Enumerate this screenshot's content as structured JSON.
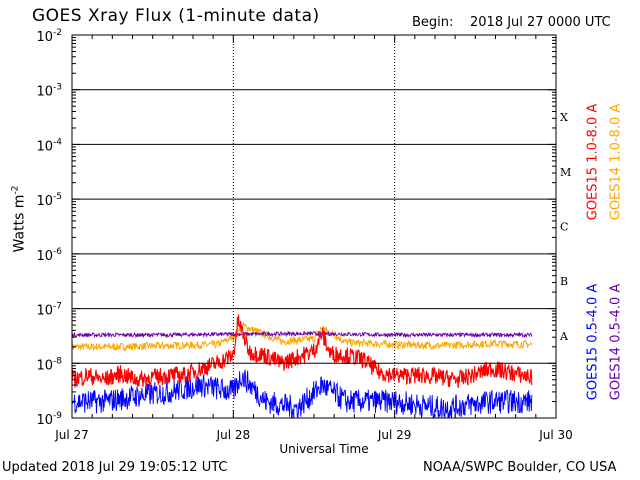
{
  "header": {
    "title": "GOES Xray Flux (1-minute data)",
    "begin_label": "Begin:",
    "begin_value": "2018 Jul 27 0000 UTC"
  },
  "footer": {
    "updated": "Updated 2018 Jul 29 19:05:12 UTC",
    "credit": "NOAA/SWPC Boulder, CO USA"
  },
  "chart_data": {
    "type": "line",
    "ylabel": "Watts m",
    "ylabel_superscript": "-2",
    "xlabel": "Universal Time",
    "yscale": "log",
    "ylim": [
      1e-09,
      0.01
    ],
    "y_ticks": [
      {
        "value": 1e-09,
        "base": "10",
        "exp": "-9"
      },
      {
        "value": 1e-08,
        "base": "10",
        "exp": "-8"
      },
      {
        "value": 1e-07,
        "base": "10",
        "exp": "-7"
      },
      {
        "value": 1e-06,
        "base": "10",
        "exp": "-6"
      },
      {
        "value": 1e-05,
        "base": "10",
        "exp": "-5"
      },
      {
        "value": 0.0001,
        "base": "10",
        "exp": "-4"
      },
      {
        "value": 0.001,
        "base": "10",
        "exp": "-3"
      },
      {
        "value": 0.01,
        "base": "10",
        "exp": "-2"
      }
    ],
    "x_ticks": [
      "Jul 27",
      "Jul 28",
      "Jul 29",
      "Jul 30"
    ],
    "xlim_days": [
      0,
      3
    ],
    "grid": true,
    "flare_classes": [
      {
        "label": "A",
        "value": 1e-08
      },
      {
        "label": "B",
        "value": 1e-07
      },
      {
        "label": "C",
        "value": 1e-06
      },
      {
        "label": "M",
        "value": 1e-05
      },
      {
        "label": "X",
        "value": 0.0001
      }
    ],
    "series": [
      {
        "name": "GOES15 1.0-8.0 A",
        "color": "#ff0000",
        "x": [
          0,
          0.1,
          0.2,
          0.3,
          0.4,
          0.5,
          0.6,
          0.7,
          0.8,
          0.9,
          1.0,
          1.03,
          1.1,
          1.2,
          1.3,
          1.4,
          1.5,
          1.55,
          1.6,
          1.7,
          1.8,
          1.9,
          2.0,
          2.2,
          2.4,
          2.6,
          2.8,
          2.85
        ],
        "y": [
          5e-09,
          6e-09,
          5e-09,
          6.5e-09,
          5e-09,
          5.5e-09,
          6e-09,
          6e-09,
          8e-09,
          1e-08,
          1.4e-08,
          6e-08,
          1.6e-08,
          1.4e-08,
          1e-08,
          1.3e-08,
          1.7e-08,
          3.5e-08,
          1.5e-08,
          1.4e-08,
          1.2e-08,
          7e-09,
          6e-09,
          6e-09,
          5e-09,
          8e-09,
          6e-09,
          5.5e-09
        ]
      },
      {
        "name": "GOES14 1.0-8.0 A",
        "color": "#ffa500",
        "x": [
          0,
          0.3,
          0.6,
          0.9,
          1.0,
          1.05,
          1.3,
          1.5,
          1.55,
          1.7,
          2.0,
          2.3,
          2.6,
          2.85
        ],
        "y": [
          2e-08,
          2e-08,
          2.1e-08,
          2.2e-08,
          3e-08,
          5e-08,
          2.5e-08,
          2.8e-08,
          4.5e-08,
          2.4e-08,
          2.2e-08,
          2.1e-08,
          2.3e-08,
          2.2e-08
        ]
      },
      {
        "name": "GOES15 0.5-4.0 A",
        "color": "#0000ff",
        "x": [
          0,
          0.2,
          0.4,
          0.6,
          0.8,
          1.0,
          1.05,
          1.2,
          1.4,
          1.55,
          1.7,
          1.9,
          2.0,
          2.3,
          2.6,
          2.85
        ],
        "y": [
          2e-09,
          2e-09,
          2.5e-09,
          3e-09,
          4e-09,
          3e-09,
          6e-09,
          2e-09,
          1.5e-09,
          4e-09,
          2e-09,
          2e-09,
          2e-09,
          1.5e-09,
          2e-09,
          2e-09
        ]
      },
      {
        "name": "GOES14 0.5-4.0 A",
        "color": "#6600aa",
        "x": [
          0,
          0.5,
          1.0,
          1.5,
          2.0,
          2.5,
          2.85
        ],
        "y": [
          3.3e-08,
          3.3e-08,
          3.4e-08,
          3.5e-08,
          3.3e-08,
          3.3e-08,
          3.3e-08
        ]
      }
    ]
  }
}
